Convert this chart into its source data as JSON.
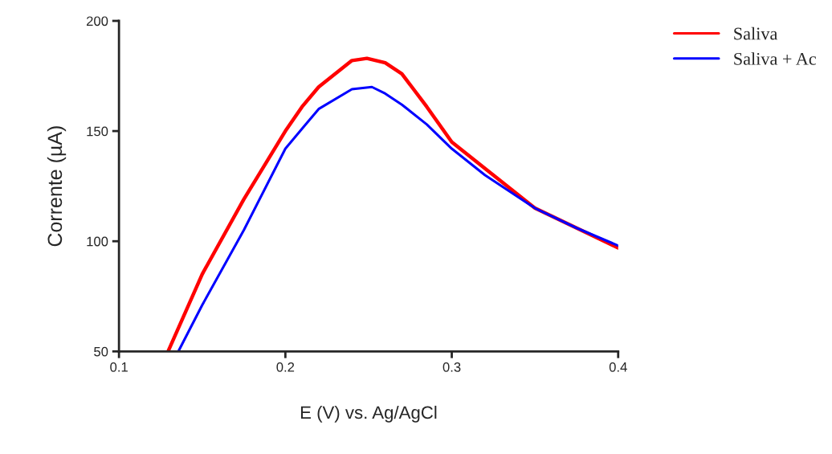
{
  "chart_data": {
    "type": "line",
    "xlabel": "E (V) vs. Ag/AgCl",
    "ylabel": "Corrente (µA)",
    "xlim": [
      0.1,
      0.4
    ],
    "ylim": [
      50,
      200
    ],
    "xticks": [
      0.1,
      0.2,
      0.3,
      0.4
    ],
    "yticks": [
      50,
      100,
      150,
      200
    ],
    "grid": false,
    "legend": "top right",
    "marker": "none",
    "line_style": "solid",
    "series": [
      {
        "name": "Saliva",
        "color": "#ff0000",
        "x": [
          0.1295,
          0.15,
          0.175,
          0.2,
          0.21,
          0.22,
          0.24,
          0.249,
          0.26,
          0.27,
          0.285,
          0.3,
          0.32,
          0.35,
          0.375,
          0.4
        ],
        "values": [
          50,
          85,
          119,
          150,
          161,
          170,
          182,
          183,
          181,
          176,
          161,
          145,
          133,
          115,
          106,
          97
        ]
      },
      {
        "name": "Saliva + Ac",
        "color": "#0000ff",
        "x": [
          0.1357,
          0.15,
          0.175,
          0.2,
          0.21,
          0.22,
          0.24,
          0.252,
          0.26,
          0.27,
          0.285,
          0.3,
          0.32,
          0.35,
          0.375,
          0.4
        ],
        "values": [
          50,
          71,
          105,
          142,
          151,
          160,
          169,
          170,
          167,
          162,
          153,
          142,
          130,
          115,
          106,
          98
        ]
      }
    ]
  }
}
